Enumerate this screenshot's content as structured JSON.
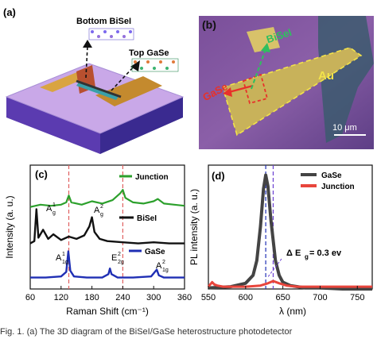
{
  "figure": {
    "panel_a": {
      "label": "(a)",
      "top_layer_label": "Top GaSe",
      "bottom_layer_label": "Bottom BiSeI"
    },
    "panel_b": {
      "label": "(b)",
      "gase_label": "GaSe",
      "bisei_label": "BiSeI",
      "au_label": "Au",
      "scale_bar": "10 μm"
    },
    "panel_c": {
      "label": "(c)",
      "xlabel": "Raman Shift (cm⁻¹)",
      "ylabel": "Intensity (a. u.)",
      "legend_junction": "Junction",
      "legend_bisei": "BiSeI",
      "legend_gase": "GaSe",
      "peak_ag1": "A",
      "peak_ag1_sup": "1",
      "peak_ag1_sub": "g",
      "peak_ag2": "A",
      "peak_ag2_sup": "2",
      "peak_ag2_sub": "g",
      "peak_a1g1": "A",
      "peak_a1g1_sup": "1",
      "peak_a1g1_sub": "1g",
      "peak_e2g": "E",
      "peak_e2g_sup": "2",
      "peak_e2g_sub": "2g",
      "peak_a1g2": "A",
      "peak_a1g2_sup": "2",
      "peak_a1g2_sub": "1g",
      "xticks": [
        "60",
        "120",
        "180",
        "240",
        "300",
        "360"
      ]
    },
    "panel_d": {
      "label": "(d)",
      "xlabel": "λ (nm)",
      "ylabel": "PL intensity (a. u.)",
      "legend_gase": "GaSe",
      "legend_junction": "Junction",
      "annotation": "Δ E",
      "annotation_sub": "g",
      "annotation_value": " = 0.3 ev",
      "xticks": [
        "550",
        "600",
        "650",
        "700",
        "750"
      ]
    },
    "caption": "Fig. 1. (a) The 3D diagram of the BiSeI/GaSe heterostructure photodetector"
  },
  "chart_data": [
    {
      "type": "line",
      "panel": "(c)",
      "xlabel": "Raman Shift (cm⁻¹)",
      "ylabel": "Intensity (a. u.)",
      "xlim": [
        60,
        360
      ],
      "dashed_lines_x": [
        135,
        240
      ],
      "series": [
        {
          "name": "Junction",
          "color": "#2ca02c",
          "x": [
            60,
            80,
            100,
            120,
            130,
            135,
            140,
            160,
            180,
            200,
            220,
            235,
            240,
            245,
            260,
            280,
            300,
            308,
            320,
            340,
            360
          ],
          "y": [
            0.72,
            0.74,
            0.73,
            0.74,
            0.76,
            0.82,
            0.76,
            0.74,
            0.77,
            0.75,
            0.78,
            0.84,
            0.87,
            0.8,
            0.76,
            0.75,
            0.77,
            0.79,
            0.75,
            0.74,
            0.73
          ]
        },
        {
          "name": "BiSeI",
          "color": "#111111",
          "x": [
            60,
            68,
            72,
            76,
            85,
            95,
            105,
            120,
            135,
            150,
            165,
            175,
            180,
            185,
            195,
            210,
            240,
            270,
            300,
            330,
            360
          ],
          "y": [
            0.4,
            0.42,
            0.7,
            0.45,
            0.52,
            0.44,
            0.48,
            0.43,
            0.46,
            0.44,
            0.47,
            0.55,
            0.63,
            0.5,
            0.44,
            0.42,
            0.41,
            0.4,
            0.41,
            0.4,
            0.4
          ]
        },
        {
          "name": "GaSe",
          "color": "#1f2fb4",
          "x": [
            60,
            90,
            120,
            130,
            134,
            138,
            145,
            170,
            200,
            212,
            215,
            218,
            230,
            260,
            295,
            306,
            310,
            320,
            340,
            360
          ],
          "y": [
            0.1,
            0.1,
            0.11,
            0.15,
            0.33,
            0.16,
            0.11,
            0.1,
            0.1,
            0.13,
            0.18,
            0.13,
            0.1,
            0.1,
            0.11,
            0.17,
            0.12,
            0.1,
            0.1,
            0.1
          ]
        }
      ]
    },
    {
      "type": "line",
      "panel": "(d)",
      "xlabel": "λ (nm)",
      "ylabel": "PL intensity (a. u.)",
      "xlim": [
        550,
        770
      ],
      "dashed_lines_x": [
        627,
        637
      ],
      "series": [
        {
          "name": "GaSe",
          "color": "#444444",
          "x": [
            550,
            580,
            600,
            610,
            615,
            620,
            624,
            627,
            630,
            634,
            640,
            645,
            650,
            660,
            680,
            700,
            730,
            770
          ],
          "y": [
            0.01,
            0.02,
            0.05,
            0.12,
            0.25,
            0.55,
            0.88,
            1.0,
            0.9,
            0.6,
            0.25,
            0.12,
            0.06,
            0.03,
            0.01,
            0.01,
            0.0,
            0.0
          ]
        },
        {
          "name": "Junction",
          "color": "#e8453c",
          "x": [
            550,
            555,
            558,
            562,
            570,
            600,
            620,
            630,
            637,
            645,
            655,
            670,
            700,
            770
          ],
          "y": [
            0.02,
            0.06,
            0.04,
            0.03,
            0.02,
            0.02,
            0.03,
            0.05,
            0.07,
            0.05,
            0.03,
            0.02,
            0.02,
            0.02
          ]
        }
      ]
    }
  ]
}
